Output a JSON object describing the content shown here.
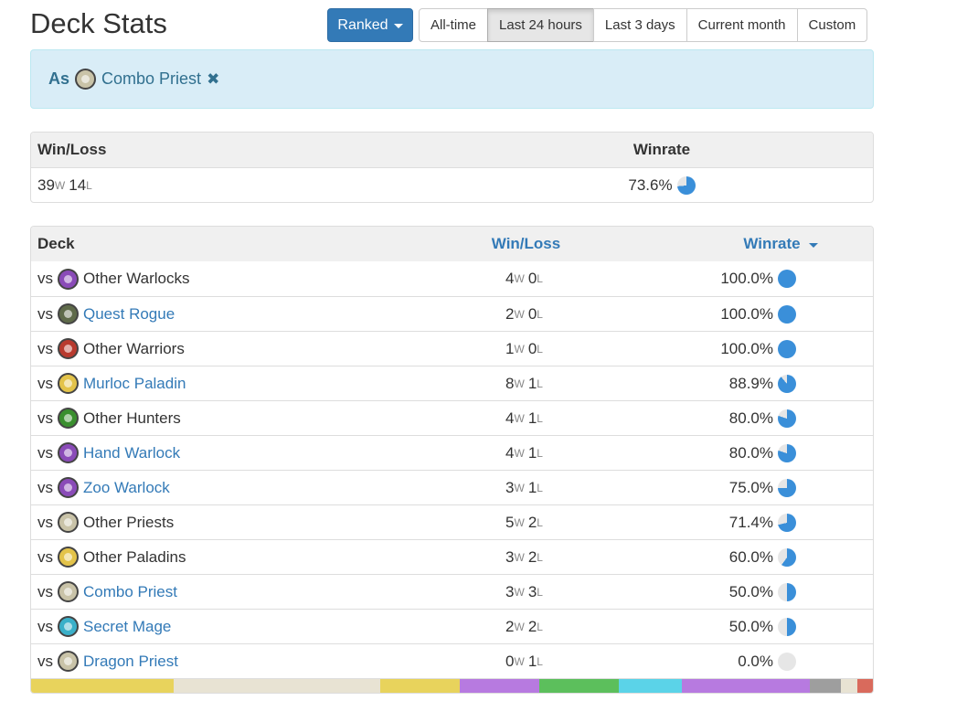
{
  "header": {
    "title": "Deck Stats",
    "mode_button": "Ranked",
    "ranges": [
      {
        "label": "All-time",
        "active": false
      },
      {
        "label": "Last 24 hours",
        "active": true
      },
      {
        "label": "Last 3 days",
        "active": false
      },
      {
        "label": "Current month",
        "active": false
      },
      {
        "label": "Custom",
        "active": false
      }
    ]
  },
  "filter": {
    "prefix": "As",
    "deck": "Combo Priest",
    "icon": "priest-class-icon",
    "icon_color": "#c9c3a8"
  },
  "summary": {
    "col_winloss": "Win/Loss",
    "col_winrate": "Winrate",
    "wins": "39",
    "losses": "14",
    "winrate": "73.6%",
    "winrate_value": 73.6
  },
  "decks_table": {
    "col_deck": "Deck",
    "col_winloss": "Win/Loss",
    "col_winrate": "Winrate",
    "vs_label": "vs",
    "win_unit": "W",
    "loss_unit": "L",
    "rows": [
      {
        "name": "Other Warlocks",
        "link": false,
        "icon": "warlock-class-icon",
        "icon_color": "#8a4bb8",
        "wins": "4",
        "losses": "0",
        "winrate": "100.0%",
        "value": 100
      },
      {
        "name": "Quest Rogue",
        "link": true,
        "icon": "rogue-class-icon",
        "icon_color": "#5f6b4a",
        "wins": "2",
        "losses": "0",
        "winrate": "100.0%",
        "value": 100
      },
      {
        "name": "Other Warriors",
        "link": false,
        "icon": "warrior-class-icon",
        "icon_color": "#b83a2e",
        "wins": "1",
        "losses": "0",
        "winrate": "100.0%",
        "value": 100
      },
      {
        "name": "Murloc Paladin",
        "link": true,
        "icon": "paladin-class-icon",
        "icon_color": "#e3c34a",
        "wins": "8",
        "losses": "1",
        "winrate": "88.9%",
        "value": 88.9
      },
      {
        "name": "Other Hunters",
        "link": false,
        "icon": "hunter-class-icon",
        "icon_color": "#3a8f2e",
        "wins": "4",
        "losses": "1",
        "winrate": "80.0%",
        "value": 80.0
      },
      {
        "name": "Hand Warlock",
        "link": true,
        "icon": "warlock-class-icon",
        "icon_color": "#8a4bb8",
        "wins": "4",
        "losses": "1",
        "winrate": "80.0%",
        "value": 80.0
      },
      {
        "name": "Zoo Warlock",
        "link": true,
        "icon": "warlock-class-icon",
        "icon_color": "#8a4bb8",
        "wins": "3",
        "losses": "1",
        "winrate": "75.0%",
        "value": 75.0
      },
      {
        "name": "Other Priests",
        "link": false,
        "icon": "priest-class-icon",
        "icon_color": "#c9c3a8",
        "wins": "5",
        "losses": "2",
        "winrate": "71.4%",
        "value": 71.4
      },
      {
        "name": "Other Paladins",
        "link": false,
        "icon": "paladin-class-icon",
        "icon_color": "#e3c34a",
        "wins": "3",
        "losses": "2",
        "winrate": "60.0%",
        "value": 60.0
      },
      {
        "name": "Combo Priest",
        "link": true,
        "icon": "priest-class-icon",
        "icon_color": "#c9c3a8",
        "wins": "3",
        "losses": "3",
        "winrate": "50.0%",
        "value": 50.0
      },
      {
        "name": "Secret Mage",
        "link": true,
        "icon": "mage-class-icon",
        "icon_color": "#3bb0c9",
        "wins": "2",
        "losses": "2",
        "winrate": "50.0%",
        "value": 50.0
      },
      {
        "name": "Dragon Priest",
        "link": true,
        "icon": "priest-class-icon",
        "icon_color": "#c9c3a8",
        "wins": "0",
        "losses": "1",
        "winrate": "0.0%",
        "value": 0.0
      }
    ]
  },
  "class_bar": [
    {
      "color": "#e8d35c",
      "value": 9
    },
    {
      "color": "#e8e3d3",
      "value": 13
    },
    {
      "color": "#e8d35c",
      "value": 5
    },
    {
      "color": "#b77ae0",
      "value": 5
    },
    {
      "color": "#5cbf5c",
      "value": 5
    },
    {
      "color": "#5bd3e8",
      "value": 4
    },
    {
      "color": "#b77ae0",
      "value": 8
    },
    {
      "color": "#9e9e9e",
      "value": 2
    },
    {
      "color": "#e8e3d3",
      "value": 1
    },
    {
      "color": "#d96a5c",
      "value": 1
    }
  ],
  "colors": {
    "accent": "#337ab7",
    "pie_fill": "#3a8fd9",
    "pie_empty": "#e6e6e6"
  }
}
